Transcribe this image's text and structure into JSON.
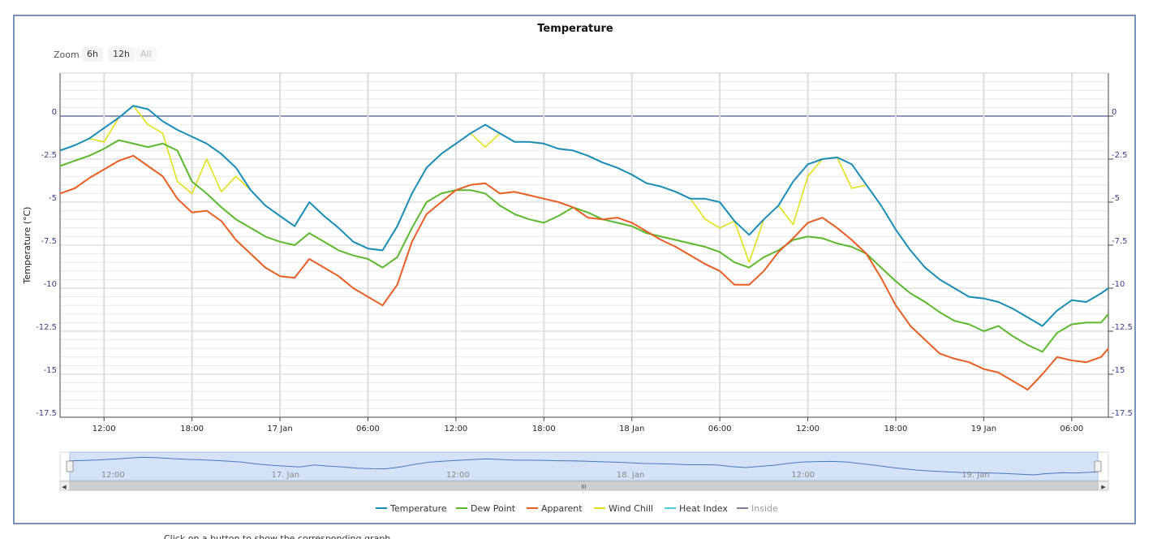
{
  "chart_data": {
    "type": "line",
    "title": "Temperature",
    "ylabel": "Temperature (°C)",
    "xlabel": "",
    "ylim": [
      -17.5,
      2.5
    ],
    "xlim": [
      "2025-01-16T09:00",
      "2025-01-19T08:30"
    ],
    "y_ticks": [
      0,
      -2.5,
      -5,
      -7.5,
      -10,
      -12.5,
      -15,
      -17.5
    ],
    "y_tick_labels": [
      "0",
      "-2.5",
      "-5",
      "-7.5",
      "-10",
      "-12.5",
      "-15",
      "-17.5"
    ],
    "x_ticks": [
      "2025-01-16T12:00",
      "2025-01-16T18:00",
      "2025-01-17T00:00",
      "2025-01-17T06:00",
      "2025-01-17T12:00",
      "2025-01-17T18:00",
      "2025-01-18T00:00",
      "2025-01-18T06:00",
      "2025-01-18T12:00",
      "2025-01-18T18:00",
      "2025-01-19T00:00",
      "2025-01-19T06:00"
    ],
    "x_tick_labels": [
      "12:00",
      "18:00",
      "17 Jan",
      "06:00",
      "12:00",
      "18:00",
      "18 Jan",
      "06:00",
      "12:00",
      "18:00",
      "19 Jan",
      "06:00"
    ],
    "grid": true,
    "legend_position": "bottom",
    "navigator_labels": [
      "12:00",
      "17. Jan",
      "12:00",
      "18. Jan",
      "12:00",
      "19. Jan"
    ],
    "series": [
      {
        "name": "Temperature",
        "color": "#1a8cb8",
        "x": [
          "2025-01-16T09:00",
          "2025-01-16T10:00",
          "2025-01-16T11:00",
          "2025-01-16T12:00",
          "2025-01-16T13:00",
          "2025-01-16T14:00",
          "2025-01-16T15:00",
          "2025-01-16T16:00",
          "2025-01-16T17:00",
          "2025-01-16T18:00",
          "2025-01-16T19:00",
          "2025-01-16T20:00",
          "2025-01-16T21:00",
          "2025-01-16T22:00",
          "2025-01-16T23:00",
          "2025-01-17T00:00",
          "2025-01-17T01:00",
          "2025-01-17T02:00",
          "2025-01-17T03:00",
          "2025-01-17T04:00",
          "2025-01-17T05:00",
          "2025-01-17T06:00",
          "2025-01-17T07:00",
          "2025-01-17T08:00",
          "2025-01-17T09:00",
          "2025-01-17T10:00",
          "2025-01-17T11:00",
          "2025-01-17T12:00",
          "2025-01-17T13:00",
          "2025-01-17T14:00",
          "2025-01-17T15:00",
          "2025-01-17T16:00",
          "2025-01-17T17:00",
          "2025-01-17T18:00",
          "2025-01-17T19:00",
          "2025-01-17T20:00",
          "2025-01-17T21:00",
          "2025-01-17T22:00",
          "2025-01-17T23:00",
          "2025-01-18T00:00",
          "2025-01-18T01:00",
          "2025-01-18T02:00",
          "2025-01-18T03:00",
          "2025-01-18T04:00",
          "2025-01-18T05:00",
          "2025-01-18T06:00",
          "2025-01-18T07:00",
          "2025-01-18T08:00",
          "2025-01-18T09:00",
          "2025-01-18T10:00",
          "2025-01-18T11:00",
          "2025-01-18T12:00",
          "2025-01-18T13:00",
          "2025-01-18T14:00",
          "2025-01-18T15:00",
          "2025-01-18T16:00",
          "2025-01-18T17:00",
          "2025-01-18T18:00",
          "2025-01-18T19:00",
          "2025-01-18T20:00",
          "2025-01-18T21:00",
          "2025-01-18T22:00",
          "2025-01-18T23:00",
          "2025-01-19T00:00",
          "2025-01-19T01:00",
          "2025-01-19T02:00",
          "2025-01-19T03:00",
          "2025-01-19T04:00",
          "2025-01-19T05:00",
          "2025-01-19T06:00",
          "2025-01-19T07:00",
          "2025-01-19T08:00",
          "2025-01-19T08:30"
        ],
        "values": [
          -2.0,
          -1.7,
          -1.3,
          -0.7,
          -0.1,
          0.6,
          0.4,
          -0.3,
          -0.8,
          -1.2,
          -1.6,
          -2.2,
          -3.0,
          -4.3,
          -5.2,
          -5.8,
          -6.4,
          -5.0,
          -5.8,
          -6.5,
          -7.3,
          -7.7,
          -7.8,
          -6.4,
          -4.5,
          -3.0,
          -2.2,
          -1.6,
          -1.0,
          -0.5,
          -1.0,
          -1.5,
          -1.5,
          -1.6,
          -1.9,
          -2.0,
          -2.3,
          -2.7,
          -3.0,
          -3.4,
          -3.9,
          -4.1,
          -4.4,
          -4.8,
          -4.8,
          -5.0,
          -6.1,
          -6.9,
          -6.0,
          -5.2,
          -3.8,
          -2.8,
          -2.5,
          -2.4,
          -2.8,
          -4.0,
          -5.2,
          -6.6,
          -7.8,
          -8.8,
          -9.5,
          -10.0,
          -10.5,
          -10.6,
          -10.8,
          -11.2,
          -11.7,
          -12.2,
          -11.3,
          -10.7,
          -10.8,
          -10.3,
          -10.0
        ]
      },
      {
        "name": "Dew Point",
        "color": "#5cb82e",
        "x": [
          "2025-01-16T09:00",
          "2025-01-16T10:00",
          "2025-01-16T11:00",
          "2025-01-16T12:00",
          "2025-01-16T13:00",
          "2025-01-16T14:00",
          "2025-01-16T15:00",
          "2025-01-16T16:00",
          "2025-01-16T17:00",
          "2025-01-16T18:00",
          "2025-01-16T19:00",
          "2025-01-16T20:00",
          "2025-01-16T21:00",
          "2025-01-16T22:00",
          "2025-01-16T23:00",
          "2025-01-17T00:00",
          "2025-01-17T01:00",
          "2025-01-17T02:00",
          "2025-01-17T03:00",
          "2025-01-17T04:00",
          "2025-01-17T05:00",
          "2025-01-17T06:00",
          "2025-01-17T07:00",
          "2025-01-17T08:00",
          "2025-01-17T09:00",
          "2025-01-17T10:00",
          "2025-01-17T11:00",
          "2025-01-17T12:00",
          "2025-01-17T13:00",
          "2025-01-17T14:00",
          "2025-01-17T15:00",
          "2025-01-17T16:00",
          "2025-01-17T17:00",
          "2025-01-17T18:00",
          "2025-01-17T19:00",
          "2025-01-17T20:00",
          "2025-01-17T21:00",
          "2025-01-17T22:00",
          "2025-01-17T23:00",
          "2025-01-18T00:00",
          "2025-01-18T01:00",
          "2025-01-18T02:00",
          "2025-01-18T03:00",
          "2025-01-18T04:00",
          "2025-01-18T05:00",
          "2025-01-18T06:00",
          "2025-01-18T07:00",
          "2025-01-18T08:00",
          "2025-01-18T09:00",
          "2025-01-18T10:00",
          "2025-01-18T11:00",
          "2025-01-18T12:00",
          "2025-01-18T13:00",
          "2025-01-18T14:00",
          "2025-01-18T15:00",
          "2025-01-18T16:00",
          "2025-01-18T17:00",
          "2025-01-18T18:00",
          "2025-01-18T19:00",
          "2025-01-18T20:00",
          "2025-01-18T21:00",
          "2025-01-18T22:00",
          "2025-01-18T23:00",
          "2025-01-19T00:00",
          "2025-01-19T01:00",
          "2025-01-19T02:00",
          "2025-01-19T03:00",
          "2025-01-19T04:00",
          "2025-01-19T05:00",
          "2025-01-19T06:00",
          "2025-01-19T07:00",
          "2025-01-19T08:00",
          "2025-01-19T08:30"
        ],
        "values": [
          -2.9,
          -2.6,
          -2.3,
          -1.9,
          -1.4,
          -1.6,
          -1.8,
          -1.6,
          -2.0,
          -3.8,
          -4.5,
          -5.3,
          -6.0,
          -6.5,
          -7.0,
          -7.3,
          -7.5,
          -6.8,
          -7.3,
          -7.8,
          -8.1,
          -8.3,
          -8.8,
          -8.2,
          -6.5,
          -5.0,
          -4.5,
          -4.3,
          -4.3,
          -4.5,
          -5.2,
          -5.7,
          -6.0,
          -6.2,
          -5.8,
          -5.3,
          -5.6,
          -6.0,
          -6.2,
          -6.4,
          -6.8,
          -7.0,
          -7.2,
          -7.4,
          -7.6,
          -7.9,
          -8.5,
          -8.8,
          -8.2,
          -7.8,
          -7.2,
          -7.0,
          -7.1,
          -7.4,
          -7.6,
          -8.0,
          -8.8,
          -9.6,
          -10.3,
          -10.8,
          -11.4,
          -11.9,
          -12.1,
          -12.5,
          -12.2,
          -12.8,
          -13.3,
          -13.7,
          -12.6,
          -12.1,
          -12.0,
          -12.0,
          -11.5
        ]
      },
      {
        "name": "Apparent",
        "color": "#e85e23",
        "x": [
          "2025-01-16T09:00",
          "2025-01-16T10:00",
          "2025-01-16T11:00",
          "2025-01-16T12:00",
          "2025-01-16T13:00",
          "2025-01-16T14:00",
          "2025-01-16T15:00",
          "2025-01-16T16:00",
          "2025-01-16T17:00",
          "2025-01-16T18:00",
          "2025-01-16T19:00",
          "2025-01-16T20:00",
          "2025-01-16T21:00",
          "2025-01-16T22:00",
          "2025-01-16T23:00",
          "2025-01-17T00:00",
          "2025-01-17T01:00",
          "2025-01-17T02:00",
          "2025-01-17T03:00",
          "2025-01-17T04:00",
          "2025-01-17T05:00",
          "2025-01-17T06:00",
          "2025-01-17T07:00",
          "2025-01-17T08:00",
          "2025-01-17T09:00",
          "2025-01-17T10:00",
          "2025-01-17T11:00",
          "2025-01-17T12:00",
          "2025-01-17T13:00",
          "2025-01-17T14:00",
          "2025-01-17T15:00",
          "2025-01-17T16:00",
          "2025-01-17T17:00",
          "2025-01-17T18:00",
          "2025-01-17T19:00",
          "2025-01-17T20:00",
          "2025-01-17T21:00",
          "2025-01-17T22:00",
          "2025-01-17T23:00",
          "2025-01-18T00:00",
          "2025-01-18T01:00",
          "2025-01-18T02:00",
          "2025-01-18T03:00",
          "2025-01-18T04:00",
          "2025-01-18T05:00",
          "2025-01-18T06:00",
          "2025-01-18T07:00",
          "2025-01-18T08:00",
          "2025-01-18T09:00",
          "2025-01-18T10:00",
          "2025-01-18T11:00",
          "2025-01-18T12:00",
          "2025-01-18T13:00",
          "2025-01-18T14:00",
          "2025-01-18T15:00",
          "2025-01-18T16:00",
          "2025-01-18T17:00",
          "2025-01-18T18:00",
          "2025-01-18T19:00",
          "2025-01-18T20:00",
          "2025-01-18T21:00",
          "2025-01-18T22:00",
          "2025-01-18T23:00",
          "2025-01-19T00:00",
          "2025-01-19T01:00",
          "2025-01-19T02:00",
          "2025-01-19T03:00",
          "2025-01-19T04:00",
          "2025-01-19T05:00",
          "2025-01-19T06:00",
          "2025-01-19T07:00",
          "2025-01-19T08:00",
          "2025-01-19T08:30"
        ],
        "values": [
          -4.5,
          -4.2,
          -3.6,
          -3.1,
          -2.6,
          -2.3,
          -2.9,
          -3.5,
          -4.8,
          -5.6,
          -5.5,
          -6.1,
          -7.2,
          -8.0,
          -8.8,
          -9.3,
          -9.4,
          -8.3,
          -8.8,
          -9.3,
          -10.0,
          -10.5,
          -11.0,
          -9.8,
          -7.3,
          -5.7,
          -5.0,
          -4.3,
          -4.0,
          -3.9,
          -4.5,
          -4.4,
          -4.6,
          -4.8,
          -5.0,
          -5.3,
          -5.9,
          -6.0,
          -5.9,
          -6.2,
          -6.7,
          -7.2,
          -7.6,
          -8.1,
          -8.6,
          -9.0,
          -9.8,
          -9.8,
          -9.0,
          -7.9,
          -7.1,
          -6.2,
          -5.9,
          -6.5,
          -7.2,
          -8.0,
          -9.4,
          -11.0,
          -12.2,
          -13.0,
          -13.8,
          -14.1,
          -14.3,
          -14.7,
          -14.9,
          -15.4,
          -15.9,
          -15.0,
          -14.0,
          -14.2,
          -14.3,
          -14.0,
          -13.5
        ]
      },
      {
        "name": "Wind Chill",
        "color": "#e0e01c",
        "x": [
          "2025-01-16T09:00",
          "2025-01-16T10:00",
          "2025-01-16T11:00",
          "2025-01-16T12:00",
          "2025-01-16T13:00",
          "2025-01-16T14:00",
          "2025-01-16T15:00",
          "2025-01-16T16:00",
          "2025-01-16T17:00",
          "2025-01-16T18:00",
          "2025-01-16T19:00",
          "2025-01-16T20:00",
          "2025-01-16T21:00",
          "2025-01-16T22:00",
          "2025-01-16T23:00",
          "2025-01-17T00:00",
          "2025-01-17T01:00",
          "2025-01-17T02:00",
          "2025-01-17T03:00",
          "2025-01-17T04:00",
          "2025-01-17T05:00",
          "2025-01-17T06:00",
          "2025-01-17T07:00",
          "2025-01-17T08:00",
          "2025-01-17T09:00",
          "2025-01-17T10:00",
          "2025-01-17T11:00",
          "2025-01-17T12:00",
          "2025-01-17T13:00",
          "2025-01-17T14:00",
          "2025-01-17T15:00",
          "2025-01-17T16:00",
          "2025-01-17T17:00",
          "2025-01-17T18:00",
          "2025-01-17T19:00",
          "2025-01-17T20:00",
          "2025-01-17T21:00",
          "2025-01-17T22:00",
          "2025-01-17T23:00",
          "2025-01-18T00:00",
          "2025-01-18T01:00",
          "2025-01-18T02:00",
          "2025-01-18T03:00",
          "2025-01-18T04:00",
          "2025-01-18T05:00",
          "2025-01-18T06:00",
          "2025-01-18T07:00",
          "2025-01-18T08:00",
          "2025-01-18T09:00",
          "2025-01-18T10:00",
          "2025-01-18T11:00",
          "2025-01-18T12:00",
          "2025-01-18T13:00",
          "2025-01-18T14:00",
          "2025-01-18T15:00",
          "2025-01-18T16:00",
          "2025-01-18T17:00",
          "2025-01-18T18:00",
          "2025-01-18T19:00",
          "2025-01-18T20:00",
          "2025-01-18T21:00",
          "2025-01-18T22:00",
          "2025-01-18T23:00",
          "2025-01-19T00:00",
          "2025-01-19T01:00",
          "2025-01-19T02:00",
          "2025-01-19T03:00",
          "2025-01-19T04:00",
          "2025-01-19T05:00",
          "2025-01-19T06:00",
          "2025-01-19T07:00",
          "2025-01-19T08:00",
          "2025-01-19T08:30"
        ],
        "values": [
          -2.0,
          -1.7,
          -1.3,
          -1.5,
          -0.1,
          0.6,
          -0.5,
          -1.0,
          -3.8,
          -4.5,
          -2.5,
          -4.4,
          -3.5,
          -4.3,
          -5.2,
          -5.8,
          -6.4,
          -5.0,
          -5.8,
          -6.5,
          -7.3,
          -7.7,
          -7.8,
          -6.4,
          -4.5,
          -3.0,
          -2.2,
          -1.6,
          -1.0,
          -1.8,
          -1.0,
          -1.5,
          -1.5,
          -1.6,
          -1.9,
          -2.0,
          -2.3,
          -2.7,
          -3.0,
          -3.4,
          -3.9,
          -4.1,
          -4.4,
          -4.8,
          -6.0,
          -6.5,
          -6.1,
          -8.5,
          -6.0,
          -5.2,
          -6.3,
          -3.5,
          -2.5,
          -2.4,
          -4.2,
          -4.0,
          -5.2,
          -6.6,
          -7.8,
          -8.8,
          -9.5,
          -10.0,
          -10.5,
          -10.6,
          -10.8,
          -11.2,
          -11.7,
          -12.2,
          -11.3,
          -10.7,
          -10.8,
          -10.3,
          -10.0
        ]
      },
      {
        "name": "Heat Index",
        "color": "#4fd0dc",
        "x": [],
        "values": []
      },
      {
        "name": "Inside",
        "color": "#7a7f9a",
        "x": [],
        "values": []
      }
    ]
  },
  "zoom": {
    "label": "Zoom",
    "buttons": [
      {
        "label": "6h",
        "enabled": true
      },
      {
        "label": "12h",
        "enabled": true
      },
      {
        "label": "All",
        "enabled": false
      }
    ]
  },
  "navigator": {
    "scrollbar_grip": "III"
  },
  "footnote": "Click on a button to show the corresponding graph ..."
}
